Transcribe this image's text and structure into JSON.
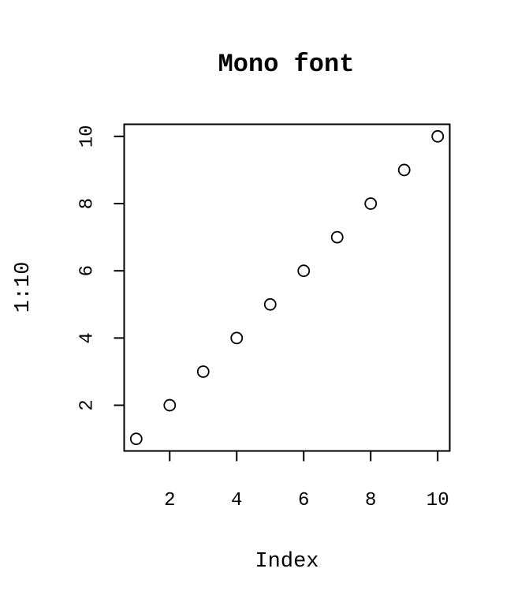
{
  "chart_data": {
    "type": "scatter",
    "title": "Mono font",
    "xlabel": "Index",
    "ylabel": "1:10",
    "xlim": [
      0.64,
      10.36
    ],
    "ylim": [
      0.64,
      10.36
    ],
    "xticks": [
      2,
      4,
      6,
      8,
      10
    ],
    "yticks": [
      2,
      4,
      6,
      8,
      10
    ],
    "xtick_labels": [
      "2",
      "4",
      "6",
      "8",
      "10"
    ],
    "ytick_labels": [
      "2",
      "4",
      "6",
      "8",
      "10"
    ],
    "grid": false,
    "marker": "open-circle",
    "series": [
      {
        "x": [
          1,
          2,
          3,
          4,
          5,
          6,
          7,
          8,
          9,
          10
        ],
        "y": [
          1,
          2,
          3,
          4,
          5,
          6,
          7,
          8,
          9,
          10
        ]
      }
    ]
  }
}
